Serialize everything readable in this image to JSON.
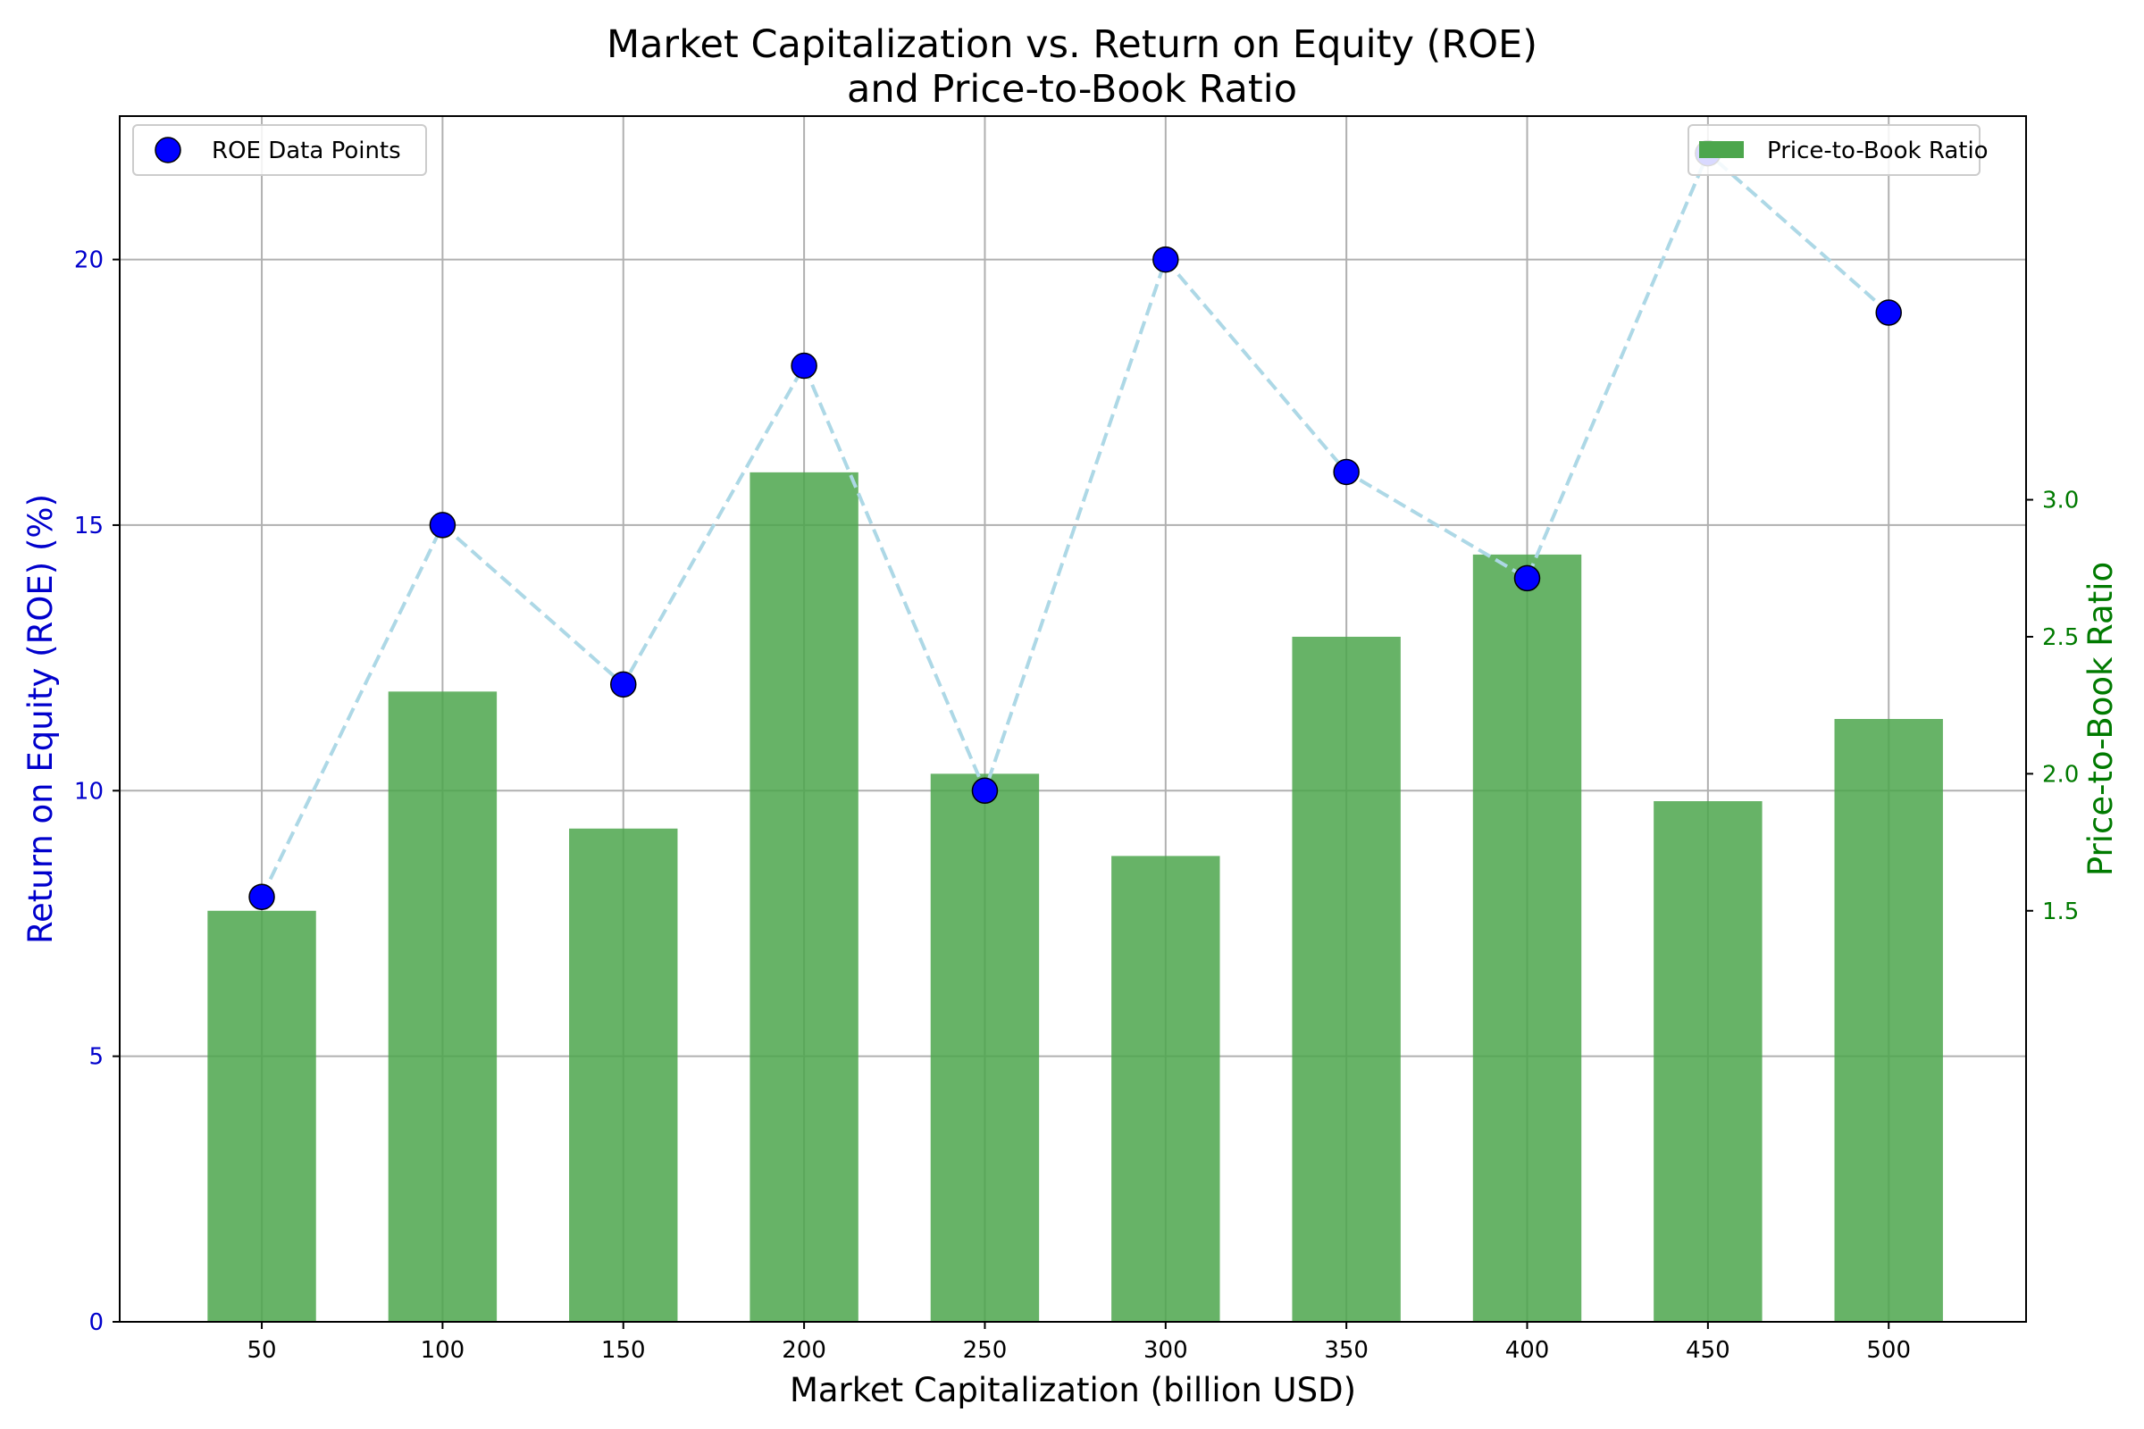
{
  "chart_data": {
    "type": "bar",
    "title": "Market Capitalization vs. Return on Equity (ROE)",
    "subtitle": "and Price-to-Book Ratio",
    "xlabel": "Market Capitalization (billion USD)",
    "ylabel": "Return on Equity (ROE) (%)",
    "y2label": "Price-to-Book Ratio",
    "x": [
      50,
      100,
      150,
      200,
      250,
      300,
      350,
      400,
      450,
      500
    ],
    "xlim": [
      10.7,
      538
    ],
    "ylim": [
      0,
      22.7
    ],
    "y2lim": [
      0,
      4.4
    ],
    "xticks": [
      50,
      100,
      150,
      200,
      250,
      300,
      350,
      400,
      450,
      500
    ],
    "yticks": [
      0,
      5,
      10,
      15,
      20
    ],
    "y2ticks": [
      1.5,
      2.0,
      2.5,
      3.0
    ],
    "grid": true,
    "series": [
      {
        "name": "ROE Data Points",
        "type": "scatter",
        "axis": "left",
        "values": [
          8,
          15,
          12,
          18,
          10,
          20,
          16,
          14,
          22,
          19
        ],
        "color": "#0000ff",
        "edge_color": "#000000",
        "line_color": "#add8e6",
        "line_style": "dashed"
      },
      {
        "name": "Price-to-Book Ratio",
        "type": "bar",
        "axis": "right",
        "values": [
          1.5,
          2.3,
          1.8,
          3.1,
          2.0,
          1.7,
          2.5,
          2.8,
          1.9,
          2.2
        ],
        "color": "#4ca64c"
      }
    ],
    "legend": [
      {
        "label": "ROE Data Points",
        "position": "top-left"
      },
      {
        "label": "Price-to-Book Ratio",
        "position": "top-right"
      }
    ],
    "colors": {
      "left_axis": "#0000cc",
      "right_axis": "#007a00",
      "grid": "#b0b0b0"
    }
  }
}
